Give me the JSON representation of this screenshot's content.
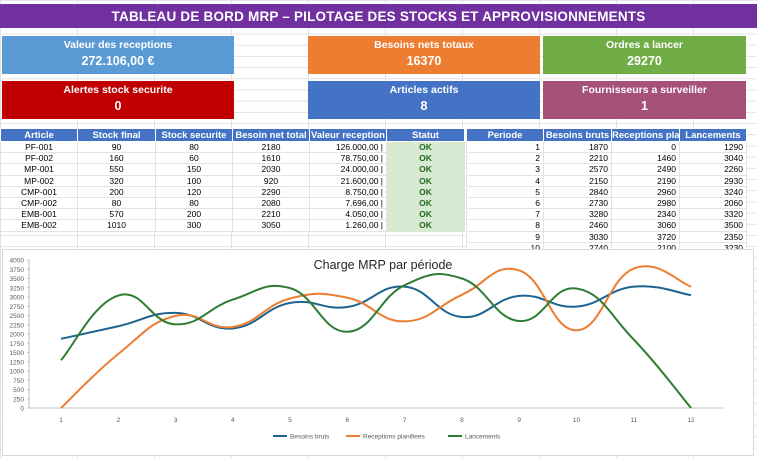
{
  "title": "TABLEAU DE BORD MRP – PILOTAGE DES STOCKS ET APPROVISIONNEMENTS",
  "kpis": [
    {
      "label": "Valeur des receptions",
      "value": "272.106,00 €",
      "color": "#5b9bd5"
    },
    {
      "label": "Besoins nets totaux",
      "value": "16370",
      "color": "#ed7d31"
    },
    {
      "label": "Ordres a lancer",
      "value": "29270",
      "color": "#70ad47"
    },
    {
      "label": "Alertes stock securite",
      "value": "0",
      "color": "#c00000"
    },
    {
      "label": "Articles actifs",
      "value": "8",
      "color": "#4472c4"
    },
    {
      "label": "Fournisseurs a surveiller",
      "value": "1",
      "color": "#a5517a"
    }
  ],
  "stock_table": {
    "headers": [
      "Article",
      "Stock final",
      "Stock securite",
      "Besoin net total",
      "Valeur reception",
      "Statut"
    ],
    "rows": [
      [
        "PF-001",
        "90",
        "80",
        "2180",
        "126.000,00 |",
        "OK"
      ],
      [
        "PF-002",
        "160",
        "60",
        "1610",
        "78.750,00 |",
        "OK"
      ],
      [
        "MP-001",
        "550",
        "150",
        "2030",
        "24.000,00 |",
        "OK"
      ],
      [
        "MP-002",
        "320",
        "100",
        "920",
        "21.600,00 |",
        "OK"
      ],
      [
        "CMP-001",
        "200",
        "120",
        "2290",
        "8.750,00 |",
        "OK"
      ],
      [
        "CMP-002",
        "80",
        "80",
        "2080",
        "7.696,00 |",
        "OK"
      ],
      [
        "EMB-001",
        "570",
        "200",
        "2210",
        "4.050,00 |",
        "OK"
      ],
      [
        "EMB-002",
        "1010",
        "300",
        "3050",
        "1.260,00 |",
        "OK"
      ]
    ]
  },
  "period_table": {
    "headers": [
      "Periode",
      "Besoins bruts",
      "Receptions planifiees",
      "Lancements"
    ],
    "rows": [
      [
        "1",
        "1870",
        "0",
        "1290"
      ],
      [
        "2",
        "2210",
        "1460",
        "3040"
      ],
      [
        "3",
        "2570",
        "2490",
        "2260"
      ],
      [
        "4",
        "2150",
        "2190",
        "2930"
      ],
      [
        "5",
        "2840",
        "2960",
        "3240"
      ],
      [
        "6",
        "2730",
        "2980",
        "2060"
      ],
      [
        "7",
        "3280",
        "2340",
        "3320"
      ],
      [
        "8",
        "2460",
        "3060",
        "3500"
      ],
      [
        "9",
        "3030",
        "3720",
        "2350"
      ],
      [
        "10",
        "2740",
        "2100",
        "3230"
      ]
    ]
  },
  "chart_data": {
    "type": "line",
    "title": "Charge MRP par période",
    "x": [
      1,
      2,
      3,
      4,
      5,
      6,
      7,
      8,
      9,
      10,
      11,
      12
    ],
    "ylim": [
      0,
      4000
    ],
    "yticks": [
      0,
      250,
      500,
      750,
      1000,
      1250,
      1500,
      1750,
      2000,
      2250,
      2500,
      2750,
      3000,
      3250,
      3500,
      3750,
      4000
    ],
    "series": [
      {
        "name": "Besoins bruts",
        "color": "#1f6391",
        "values": [
          1870,
          2210,
          2570,
          2150,
          2840,
          2730,
          3280,
          2460,
          3030,
          2740,
          3280,
          3050
        ]
      },
      {
        "name": "Receptions planifiees",
        "color": "#ed7d31",
        "values": [
          0,
          1460,
          2490,
          2190,
          2960,
          2980,
          2340,
          3060,
          3720,
          2100,
          3770,
          3280
        ]
      },
      {
        "name": "Lancements",
        "color": "#2e7d32",
        "values": [
          1290,
          3040,
          2260,
          2930,
          3240,
          2060,
          3320,
          3500,
          2350,
          3230,
          1850,
          0
        ]
      }
    ],
    "legend_position": "bottom",
    "grid": false
  }
}
